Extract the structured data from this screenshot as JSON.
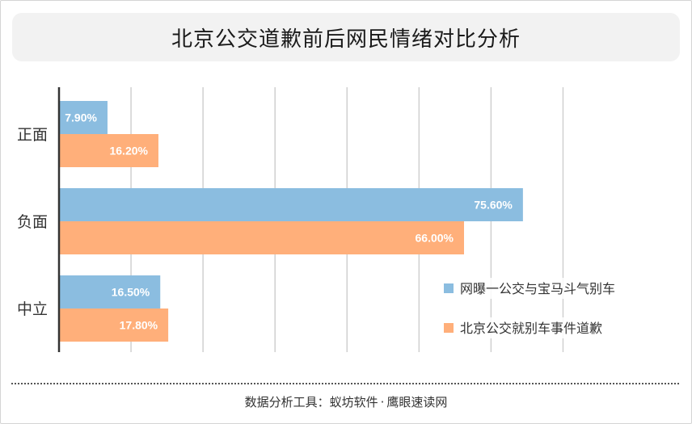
{
  "title": "北京公交道歉前后网民情绪对比分析",
  "footer": {
    "label": "数据分析工具：",
    "tool1": "蚁坊软件",
    "separator": "·",
    "tool2": "鹰眼速读网"
  },
  "chart_data": {
    "type": "bar",
    "orientation": "horizontal",
    "categories": [
      "正面",
      "负面",
      "中立"
    ],
    "series": [
      {
        "name": "网曝一公交与宝马斗气别车",
        "values": [
          7.9,
          75.6,
          16.5
        ],
        "labels": [
          "7.90%",
          "75.60%",
          "16.50%"
        ],
        "color": "#8bbde0"
      },
      {
        "name": "北京公交就别车事件道歉",
        "values": [
          16.2,
          66.0,
          17.8
        ],
        "labels": [
          "16.20%",
          "66.00%",
          "17.80%"
        ],
        "color": "#ffaf7a"
      }
    ],
    "xlim": [
      0,
      88
    ],
    "grid": true,
    "legend_position": "bottom-right"
  }
}
